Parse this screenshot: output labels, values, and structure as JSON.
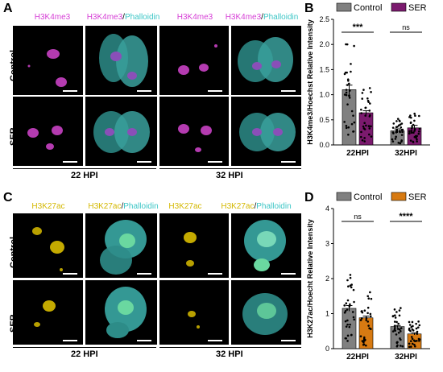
{
  "panels": {
    "A": {
      "letter": "A",
      "columns": [
        {
          "stain": "H3K4me3",
          "color": "#d63fd6"
        },
        {
          "stain": "H3K4me3",
          "stain2": "Phalloidin",
          "color": "#d63fd6",
          "color2": "#3cc6c6"
        },
        {
          "stain": "H3K4me3",
          "color": "#d63fd6"
        },
        {
          "stain": "H3K4me3",
          "stain2": "Phalloidin",
          "color": "#d63fd6",
          "color2": "#3cc6c6"
        }
      ],
      "rows": [
        "Control",
        "SER"
      ],
      "timepoints": [
        "22 HPI",
        "32 HPI"
      ]
    },
    "C": {
      "letter": "C",
      "columns": [
        {
          "stain": "H3K27ac",
          "color": "#d4b800"
        },
        {
          "stain": "H3K27ac",
          "stain2": "Phalloidin",
          "color": "#d4b800",
          "color2": "#3cc6c6"
        },
        {
          "stain": "H3K27ac",
          "color": "#d4b800"
        },
        {
          "stain": "H3K27ac",
          "stain2": "Phalloidin",
          "color": "#d4b800",
          "color2": "#3cc6c6"
        }
      ],
      "rows": [
        "Control",
        "SER"
      ],
      "timepoints": [
        "22 HPI",
        "32 HPI"
      ]
    }
  },
  "chart_data": [
    {
      "panel": "B",
      "type": "bar",
      "ylabel": "H3K4me3/Hoechst Relative Intensity",
      "categories": [
        "22HPI",
        "32HPI"
      ],
      "series": [
        {
          "name": "Control",
          "color": "#808080",
          "values": [
            1.1,
            0.28
          ],
          "errors": [
            0.09,
            0.04
          ]
        },
        {
          "name": "SER",
          "color": "#7b1a6e",
          "values": [
            0.64,
            0.34
          ],
          "errors": [
            0.04,
            0.05
          ]
        }
      ],
      "ylim": [
        0,
        2.5
      ],
      "yticks": [
        "0.0",
        "0.5",
        "1.0",
        "1.5",
        "2.0",
        "2.5"
      ],
      "significance": [
        "***",
        "ns"
      ],
      "legend": "top"
    },
    {
      "panel": "D",
      "type": "bar",
      "ylabel": "H3K27ac/Hoecht Relative  Intensity",
      "categories": [
        "22HPI",
        "32HPI"
      ],
      "series": [
        {
          "name": "Control",
          "color": "#808080",
          "values": [
            1.15,
            0.63
          ],
          "errors": [
            0.08,
            0.03
          ]
        },
        {
          "name": "SER",
          "color": "#d77a12",
          "values": [
            0.88,
            0.42
          ],
          "errors": [
            0.05,
            0.03
          ]
        }
      ],
      "ylim": [
        0,
        4
      ],
      "yticks": [
        "0",
        "1",
        "2",
        "3",
        "4"
      ],
      "significance": [
        "ns",
        "****"
      ],
      "legend": "top"
    }
  ]
}
